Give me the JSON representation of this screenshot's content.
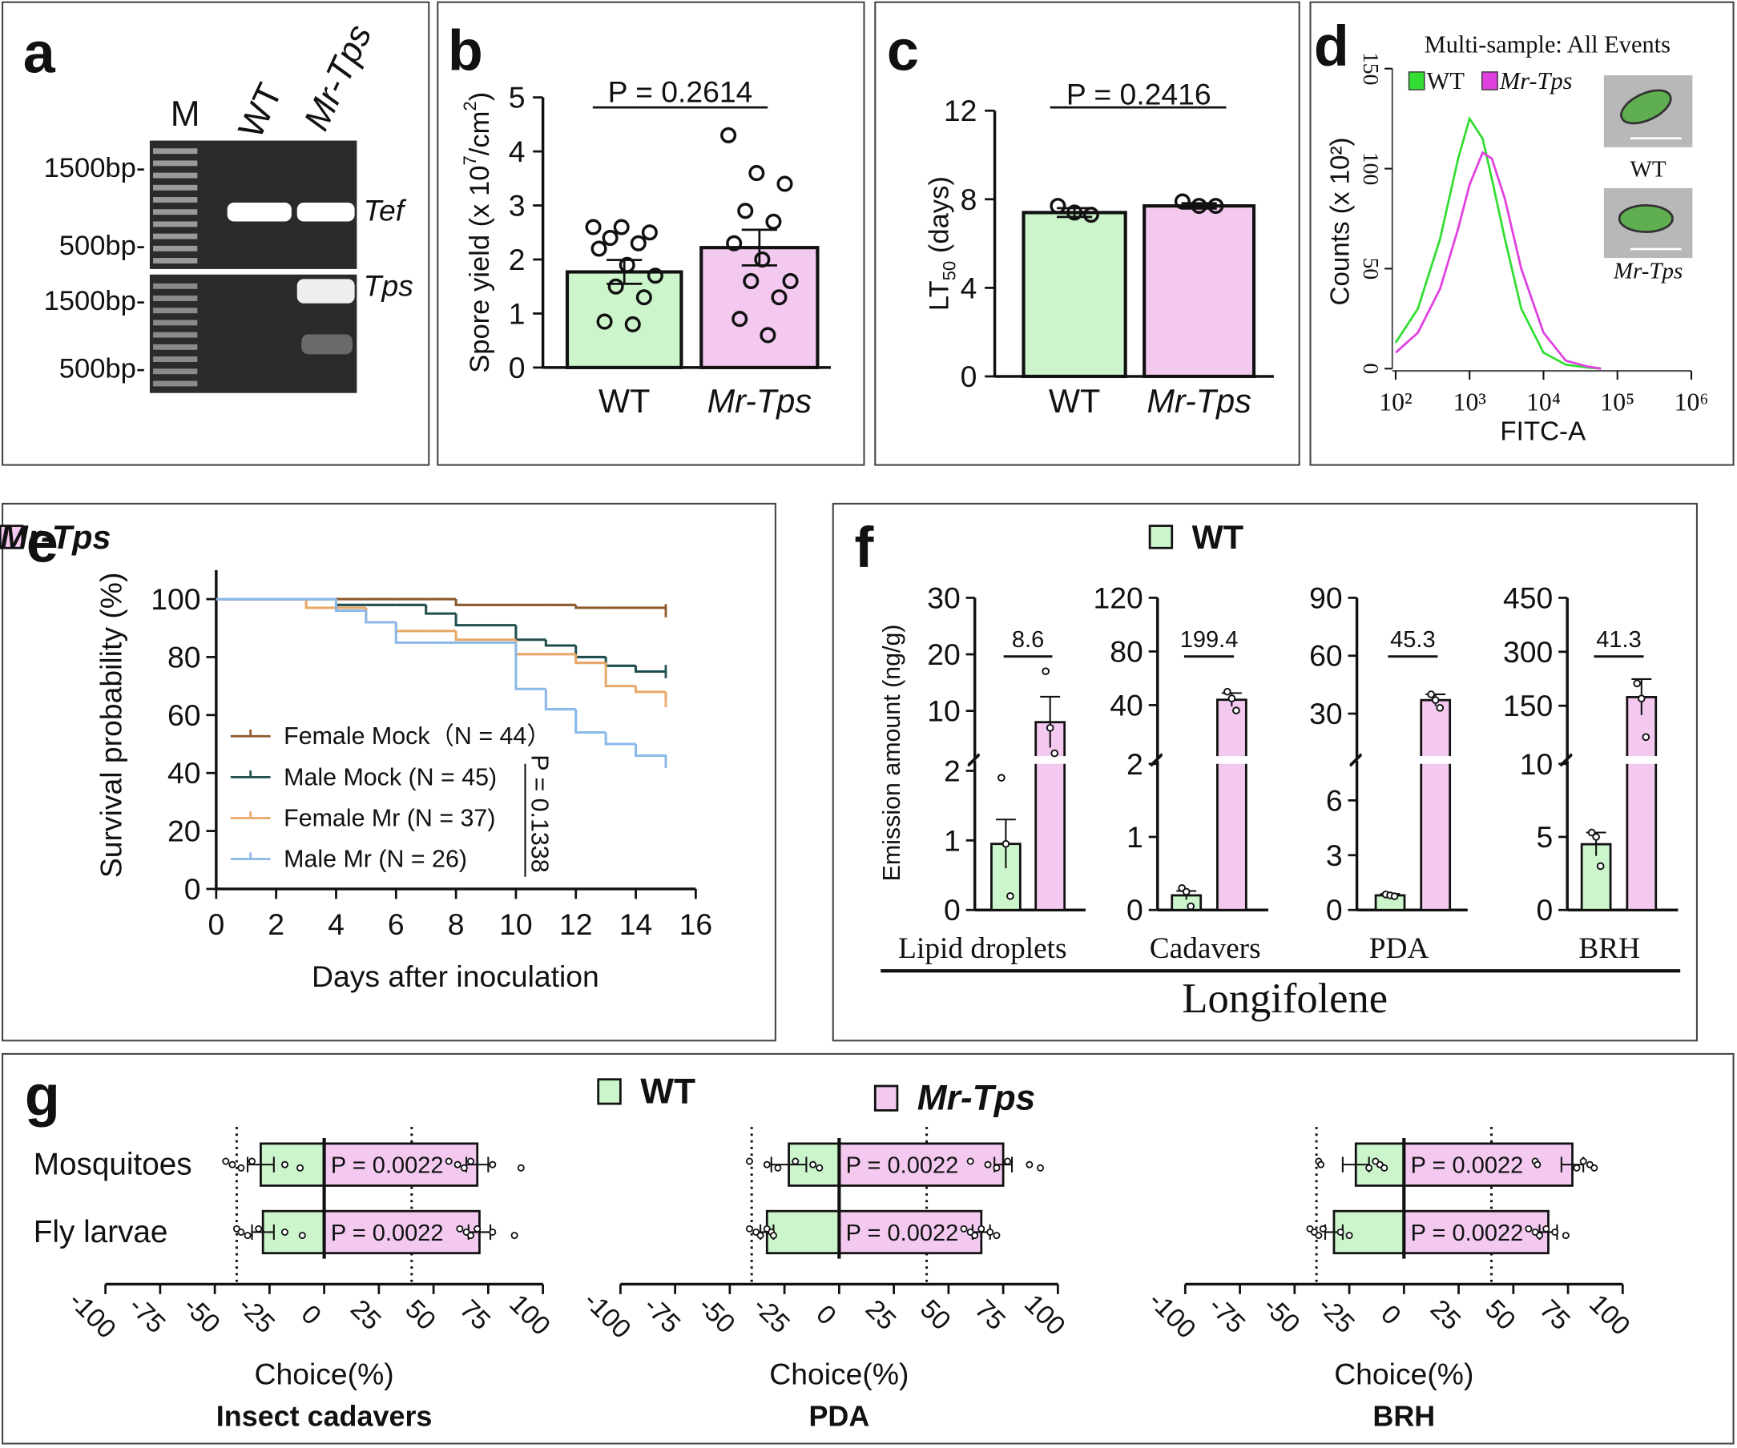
{
  "chart_data": [
    {
      "type": "gel",
      "panel": "a",
      "lanes": [
        "M",
        "WT",
        "Mr-Tps"
      ],
      "markers": [
        "1500bp-",
        "500bp-",
        "1500bp-",
        "500bp-"
      ],
      "genes": [
        "Tef",
        "Tps"
      ]
    },
    {
      "type": "bar",
      "panel": "b",
      "categories": [
        "WT",
        "Mr-Tps"
      ],
      "colors": [
        "#ccf5cc",
        "#f3c9f0"
      ],
      "values": [
        1.77,
        2.22
      ],
      "errors": [
        0.22,
        0.33
      ],
      "points": [
        [
          2.6,
          2.6,
          2.5,
          2.4,
          2.3,
          2.2,
          1.9,
          1.7,
          1.5,
          1.3,
          0.85,
          0.8
        ],
        [
          4.3,
          3.6,
          3.4,
          2.9,
          2.7,
          2.3,
          2.0,
          1.6,
          1.6,
          1.3,
          0.9,
          0.6
        ]
      ],
      "ylim": [
        0,
        5
      ],
      "yticks": [
        0,
        1,
        2,
        3,
        4,
        5
      ],
      "ylabel_parts": [
        {
          "text": "Spore yield (x 10"
        },
        {
          "text": "7",
          "sup": true
        },
        {
          "text": "/cm"
        },
        {
          "text": "2",
          "sup": true
        },
        {
          "text": ")"
        }
      ],
      "annotation": "P = 0.2614"
    },
    {
      "type": "bar",
      "panel": "c",
      "categories": [
        "WT",
        "Mr-Tps"
      ],
      "colors": [
        "#ccf5cc",
        "#f3c9f0"
      ],
      "values": [
        7.4,
        7.7
      ],
      "errors": [
        0.2,
        0.12
      ],
      "points": [
        [
          7.7,
          7.3,
          7.4
        ],
        [
          7.9,
          7.7,
          7.7
        ]
      ],
      "ylim": [
        0,
        12
      ],
      "yticks": [
        0,
        4,
        8,
        12
      ],
      "ylabel_parts": [
        {
          "text": "LT"
        },
        {
          "text": "50",
          "sub": true
        },
        {
          "text": " (days)"
        }
      ],
      "annotation": "P = 0.2416"
    },
    {
      "type": "line",
      "panel": "d",
      "title": "Multi-sample: All Events",
      "log_x": true,
      "xlim": [
        100,
        1000000
      ],
      "xticks": [
        {
          "value": 100,
          "label": "10²"
        },
        {
          "value": 1000,
          "label": "10³"
        },
        {
          "value": 10000,
          "label": "10⁴"
        },
        {
          "value": 100000,
          "label": "10⁵"
        },
        {
          "value": 1000000,
          "label": "10⁶"
        }
      ],
      "ylim": [
        0,
        150
      ],
      "yticks": [
        0,
        50,
        100,
        150
      ],
      "xlabel": "FITC-A",
      "ylabel": "Counts (x 10²)",
      "x": [
        100,
        200,
        400,
        700,
        1000,
        1500,
        2000,
        3000,
        5000,
        10000,
        20000,
        40000,
        60000
      ],
      "series": [
        {
          "name": "WT",
          "color": "#33dd33",
          "values": [
            13,
            30,
            65,
            105,
            125,
            115,
            95,
            65,
            30,
            8,
            2,
            0.5,
            0
          ]
        },
        {
          "name": "Mr-Tps",
          "color": "#e040e0",
          "values": [
            8,
            18,
            40,
            70,
            92,
            108,
            105,
            85,
            50,
            18,
            4,
            1,
            0
          ]
        }
      ],
      "inset_labels": [
        "WT",
        "Mr-Tps"
      ]
    },
    {
      "type": "step",
      "panel": "e",
      "xlim": [
        0,
        16
      ],
      "xticks": [
        0,
        2,
        4,
        6,
        8,
        10,
        12,
        14,
        16
      ],
      "ylim": [
        0,
        110
      ],
      "yticks": [
        0,
        20,
        40,
        60,
        80,
        100
      ],
      "xlabel": "Days after inoculation",
      "ylabel": "Survival probability (%)",
      "annotation": "P = 0.1338",
      "x": [
        0,
        3,
        4,
        5,
        6,
        7,
        8,
        10,
        11,
        12,
        13,
        14,
        15
      ],
      "series": [
        {
          "name": "Female Mock（N = 44）",
          "color": "#8b5a2b",
          "values": [
            100,
            100,
            100,
            100,
            100,
            100,
            98,
            98,
            98,
            97,
            97,
            97,
            96
          ]
        },
        {
          "name": "Male Mock (N = 45)",
          "color": "#1f4e4e",
          "values": [
            100,
            100,
            98,
            98,
            98,
            95,
            91,
            86,
            84,
            80,
            77,
            75,
            75
          ]
        },
        {
          "name": "Female Mr (N = 37)",
          "color": "#e8a868",
          "values": [
            100,
            97,
            97,
            92,
            89,
            89,
            86,
            81,
            81,
            78,
            70,
            68,
            65
          ]
        },
        {
          "name": "Male Mr (N = 26)",
          "color": "#8ab8e8",
          "values": [
            100,
            100,
            96,
            92,
            85,
            85,
            85,
            69,
            62,
            54,
            50,
            46,
            44
          ]
        }
      ]
    },
    {
      "type": "broken_bar",
      "panel": "f",
      "title": "Longifolene",
      "ylabel": "Emission amount (ng/g)",
      "series": [
        {
          "name": "WT",
          "color": "#ccf5cc"
        },
        {
          "name": "Mr-Tps",
          "color": "#f3c9f0"
        }
      ],
      "groups": [
        {
          "name": "Lipid droplets",
          "values": [
            0.95,
            8
          ],
          "errors": [
            0.35,
            4.5
          ],
          "points": [
            [
              1.9,
              0.95,
              0.2
            ],
            [
              17,
              7,
              2.5
            ]
          ],
          "annotation": "8.6",
          "lower_ylim": [
            0,
            2.1
          ],
          "lower_yticks": [
            0,
            1,
            2
          ],
          "upper_ylim": [
            2,
            30
          ],
          "upper_yticks": [
            10,
            20,
            30
          ]
        },
        {
          "name": "Cadavers",
          "values": [
            0.2,
            44
          ],
          "errors": [
            0.06,
            5
          ],
          "points": [
            [
              0.3,
              0.25,
              0.05
            ],
            [
              50,
              45,
              36
            ]
          ],
          "annotation": "199.4",
          "lower_ylim": [
            0,
            2
          ],
          "lower_yticks": [
            0,
            1,
            2
          ],
          "upper_ylim": [
            2,
            120
          ],
          "upper_yticks": [
            40,
            80,
            120
          ]
        },
        {
          "name": "PDA",
          "values": [
            0.8,
            37
          ],
          "errors": [
            0.08,
            3
          ],
          "points": [
            [
              0.85,
              0.8,
              0.75
            ],
            [
              40,
              37,
              33
            ]
          ],
          "annotation": "45.3",
          "lower_ylim": [
            0,
            8
          ],
          "lower_yticks": [
            0,
            3,
            6
          ],
          "upper_ylim": [
            8,
            90
          ],
          "upper_yticks": [
            30,
            60,
            90
          ]
        },
        {
          "name": "BRH",
          "values": [
            4.5,
            174
          ],
          "errors": [
            0.8,
            50
          ],
          "points": [
            [
              5.3,
              5,
              3
            ],
            [
              212,
              170,
              63
            ]
          ],
          "annotation": "41.3",
          "lower_ylim": [
            0,
            10
          ],
          "lower_yticks": [
            0,
            5,
            10
          ],
          "upper_ylim": [
            10,
            450
          ],
          "upper_yticks": [
            150,
            300,
            450
          ]
        }
      ]
    },
    {
      "type": "hbar",
      "panel": "g",
      "categories": [
        "Mosquitoes",
        "Fly larvae"
      ],
      "xlim": [
        -100,
        100
      ],
      "xticks": [
        -100,
        -75,
        -50,
        -25,
        0,
        25,
        50,
        75,
        100
      ],
      "ref_lines": [
        -40,
        40
      ],
      "xlabel": "Choice(%)",
      "series": [
        {
          "name": "WT",
          "color": "#ccf5cc"
        },
        {
          "name": "Mr-Tps",
          "color": "#f3c9f0"
        }
      ],
      "subplots": [
        {
          "title": "Insect cadavers",
          "annotations": [
            "P = 0.0022",
            "P = 0.0022"
          ],
          "series": [
            {
              "values": [
                -29,
                -28
              ],
              "errors": [
                6,
                5
              ],
              "points": [
                [
                  -45,
                  -42,
                  -38,
                  -33,
                  -18,
                  -11
                ],
                [
                  -40,
                  -38,
                  -35,
                  -30,
                  -18,
                  -10
                ]
              ]
            },
            {
              "values": [
                70,
                71
              ],
              "errors": [
                5,
                5
              ],
              "points": [
                [
                  57,
                  61,
                  64,
                  67,
                  77,
                  90
                ],
                [
                  62,
                  65,
                  67,
                  70,
                  77,
                  87
                ]
              ]
            }
          ]
        },
        {
          "title": "PDA",
          "annotations": [
            "P = 0.0022",
            "P = 0.0022"
          ],
          "series": [
            {
              "values": [
                -23,
                -33
              ],
              "errors": [
                8,
                3
              ],
              "points": [
                [
                  -41,
                  -33,
                  -28,
                  -20,
                  -12,
                  -9
                ],
                [
                  -41,
                  -38,
                  -36,
                  -33,
                  -31,
                  -30
                ]
              ]
            },
            {
              "values": [
                75,
                65
              ],
              "errors": [
                4,
                4
              ],
              "points": [
                [
                  60,
                  68,
                  72,
                  77,
                  87,
                  92
                ],
                [
                  57,
                  60,
                  62,
                  65,
                  69,
                  72
                ]
              ]
            }
          ]
        },
        {
          "title": "BRH",
          "annotations": [
            "P = 0.0022",
            "P = 0.0022"
          ],
          "series": [
            {
              "values": [
                -22,
                -32
              ],
              "errors": [
                6,
                4
              ],
              "points": [
                [
                  -39,
                  -38,
                  -16,
                  -13,
                  -11,
                  -9
                ],
                [
                  -43,
                  -41,
                  -39,
                  -37,
                  -29,
                  -25
                ]
              ]
            },
            {
              "values": [
                77,
                66
              ],
              "errors": [
                5,
                4
              ],
              "points": [
                [
                  60,
                  61,
                  79,
                  82,
                  85,
                  87
                ],
                [
                  57,
                  60,
                  62,
                  65,
                  69,
                  74
                ]
              ]
            }
          ]
        }
      ]
    }
  ]
}
